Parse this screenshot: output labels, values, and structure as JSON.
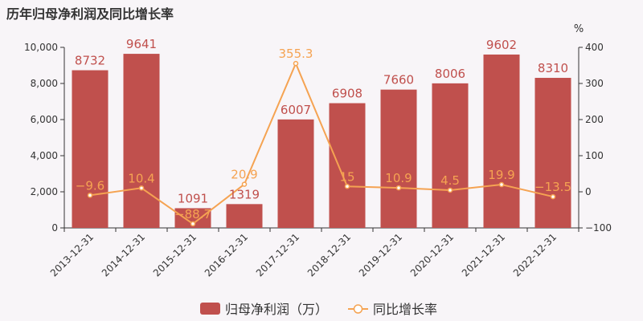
{
  "title": "历年归母净利润及同比增长率",
  "chart_data": {
    "type": "bar",
    "title": "历年归母净利润及同比增长率",
    "categories": [
      "2013-12-31",
      "2014-12-31",
      "2015-12-31",
      "2016-12-31",
      "2017-12-31",
      "2018-12-31",
      "2019-12-31",
      "2020-12-31",
      "2021-12-31",
      "2022-12-31"
    ],
    "series": [
      {
        "name": "归母净利润（万）",
        "type": "bar",
        "axis": "left",
        "color": "#c0504d",
        "values": [
          8732,
          9641,
          1091,
          1319,
          6007,
          6908,
          7660,
          8006,
          9602,
          8310
        ],
        "labels": [
          "8732",
          "9641",
          "1091",
          "1319",
          "6007",
          "6908",
          "7660",
          "8006",
          "9602",
          "8310"
        ]
      },
      {
        "name": "同比增长率",
        "type": "line",
        "axis": "right",
        "color": "#f5a352",
        "values": [
          -9.6,
          10.4,
          -88.7,
          20.9,
          355.3,
          15,
          10.9,
          4.5,
          19.9,
          -13.5
        ],
        "labels": [
          "−9.6",
          "10.4",
          "−88.7",
          "20.9",
          "355.3",
          "15",
          "10.9",
          "4.5",
          "19.9",
          "−13.5"
        ]
      }
    ],
    "y_left": {
      "ylim": [
        0,
        10000
      ],
      "ticks": [
        0,
        2000,
        4000,
        6000,
        8000,
        10000
      ],
      "tick_labels": [
        "0",
        "2,000",
        "4,000",
        "6,000",
        "8,000",
        "10,000"
      ]
    },
    "y_right": {
      "unit": "%",
      "ylim": [
        -100,
        400
      ],
      "ticks": [
        -100,
        0,
        100,
        200,
        300,
        400
      ],
      "tick_labels": [
        "−100",
        "0",
        "100",
        "200",
        "300",
        "400"
      ]
    },
    "grid": false,
    "legend_position": "bottom"
  }
}
